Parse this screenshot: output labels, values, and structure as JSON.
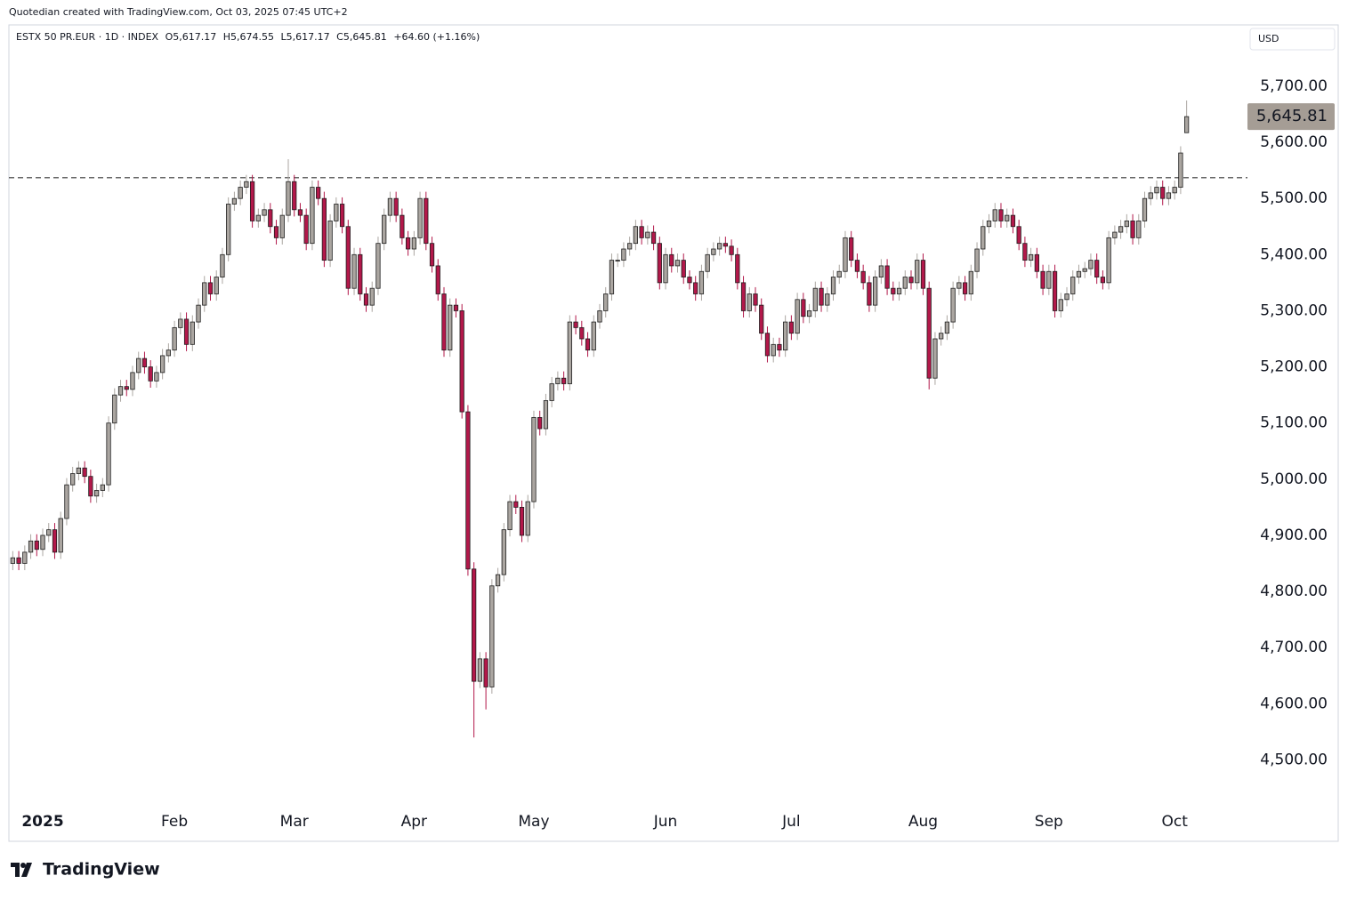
{
  "attribution": "Quotedian created with TradingView.com, Oct 03, 2025 07:45 UTC+2",
  "header": {
    "symbol": "ESTX 50 PR.EUR · 1D · INDEX",
    "open": "O5,617.17",
    "high": "H5,674.55",
    "low": "L5,617.17",
    "close": "C5,645.81",
    "change": "+64.60 (+1.16%)"
  },
  "currency": "USD",
  "logo": "TradingView",
  "chart_data": {
    "type": "candlestick",
    "up_color": "#aba6a1",
    "down_color": "#b2184a",
    "border_color": "#1e1e1e",
    "ylim": [
      4420,
      5806
    ],
    "yticks": [
      {
        "value": 4500,
        "label": "4,500.00"
      },
      {
        "value": 4600,
        "label": "4,600.00"
      },
      {
        "value": 4700,
        "label": "4,700.00"
      },
      {
        "value": 4800,
        "label": "4,800.00"
      },
      {
        "value": 4900,
        "label": "4,900.00"
      },
      {
        "value": 5000,
        "label": "5,000.00"
      },
      {
        "value": 5100,
        "label": "5,100.00"
      },
      {
        "value": 5200,
        "label": "5,200.00"
      },
      {
        "value": 5300,
        "label": "5,300.00"
      },
      {
        "value": 5400,
        "label": "5,400.00"
      },
      {
        "value": 5500,
        "label": "5,500.00"
      },
      {
        "value": 5600,
        "label": "5,600.00"
      },
      {
        "value": 5700,
        "label": "5,700.00"
      }
    ],
    "hline": 5537,
    "last_price_label": "5,645.81",
    "categories": [
      null,
      null,
      null,
      null,
      null,
      "2025",
      null,
      null,
      null,
      null,
      null,
      null,
      null,
      null,
      null,
      null,
      null,
      null,
      null,
      null,
      null,
      null,
      null,
      null,
      null,
      null,
      null,
      "Feb",
      null,
      null,
      null,
      null,
      null,
      null,
      null,
      null,
      null,
      null,
      null,
      null,
      null,
      null,
      null,
      null,
      null,
      null,
      null,
      "Mar",
      null,
      null,
      null,
      null,
      null,
      null,
      null,
      null,
      null,
      null,
      null,
      null,
      null,
      null,
      null,
      null,
      null,
      null,
      null,
      "Apr",
      null,
      null,
      null,
      null,
      null,
      null,
      null,
      null,
      null,
      null,
      null,
      null,
      null,
      null,
      null,
      null,
      null,
      null,
      null,
      "May",
      null,
      null,
      null,
      null,
      null,
      null,
      null,
      null,
      null,
      null,
      null,
      null,
      null,
      null,
      null,
      null,
      null,
      null,
      null,
      null,
      null,
      "Jun",
      null,
      null,
      null,
      null,
      null,
      null,
      null,
      null,
      null,
      null,
      null,
      null,
      null,
      null,
      null,
      null,
      null,
      null,
      null,
      null,
      "Jul",
      null,
      null,
      null,
      null,
      null,
      null,
      null,
      null,
      null,
      null,
      null,
      null,
      null,
      null,
      null,
      null,
      null,
      null,
      null,
      null,
      null,
      "Aug",
      null,
      null,
      null,
      null,
      null,
      null,
      null,
      null,
      null,
      null,
      null,
      null,
      null,
      null,
      null,
      null,
      null,
      null,
      null,
      null,
      "Sep",
      null,
      null,
      null,
      null,
      null,
      null,
      null,
      null,
      null,
      null,
      null,
      null,
      null,
      null,
      null,
      null,
      null,
      null,
      null,
      null,
      "Oct",
      null,
      null
    ],
    "open": [
      4850,
      4860,
      4850,
      4870,
      4890,
      4875,
      4900,
      4910,
      4870,
      4930,
      4990,
      5010,
      5020,
      5005,
      4970,
      4980,
      4990,
      5100,
      5150,
      5165,
      5160,
      5190,
      5215,
      5200,
      5175,
      5190,
      5220,
      5230,
      5270,
      5285,
      5240,
      5280,
      5310,
      5350,
      5330,
      5360,
      5400,
      5490,
      5500,
      5520,
      5530,
      5460,
      5470,
      5480,
      5450,
      5430,
      5470,
      5530,
      5480,
      5470,
      5420,
      5520,
      5500,
      5390,
      5460,
      5490,
      5450,
      5340,
      5400,
      5330,
      5310,
      5340,
      5420,
      5470,
      5500,
      5470,
      5430,
      5410,
      5430,
      5500,
      5420,
      5380,
      5330,
      5230,
      5310,
      5300,
      5120,
      4840,
      4640,
      4680,
      4630,
      4810,
      4830,
      4910,
      4960,
      4950,
      4900,
      4960,
      5110,
      5090,
      5140,
      5170,
      5180,
      5170,
      5280,
      5270,
      5250,
      5230,
      5280,
      5300,
      5330,
      5390,
      5390,
      5410,
      5420,
      5450,
      5430,
      5440,
      5420,
      5350,
      5400,
      5380,
      5390,
      5360,
      5350,
      5330,
      5370,
      5400,
      5410,
      5420,
      5415,
      5400,
      5350,
      5300,
      5330,
      5310,
      5260,
      5220,
      5240,
      5230,
      5280,
      5260,
      5320,
      5290,
      5300,
      5340,
      5310,
      5330,
      5360,
      5370,
      5430,
      5390,
      5370,
      5350,
      5310,
      5360,
      5380,
      5340,
      5330,
      5340,
      5360,
      5350,
      5390,
      5340,
      5180,
      5250,
      5260,
      5280,
      5340,
      5350,
      5330,
      5370,
      5410,
      5450,
      5460,
      5480,
      5460,
      5470,
      5450,
      5420,
      5390,
      5400,
      5370,
      5340,
      5370,
      5300,
      5320,
      5330,
      5360,
      5370,
      5375,
      5390,
      5360,
      5350,
      5430,
      5440,
      5450,
      5460,
      5430,
      5460,
      5500,
      5510,
      5520,
      5500,
      5510,
      5520,
      5617.17
    ],
    "high": [
      4872,
      4872,
      4882,
      4902,
      4902,
      4912,
      4922,
      4922,
      4942,
      5002,
      5022,
      5032,
      5032,
      5017,
      4992,
      5002,
      5112,
      5162,
      5177,
      5177,
      5202,
      5227,
      5227,
      5212,
      5202,
      5232,
      5242,
      5282,
      5297,
      5297,
      5292,
      5322,
      5362,
      5362,
      5372,
      5412,
      5502,
      5512,
      5532,
      5542,
      5542,
      5482,
      5492,
      5492,
      5462,
      5482,
      5570,
      5542,
      5492,
      5482,
      5532,
      5532,
      5512,
      5472,
      5502,
      5502,
      5462,
      5412,
      5412,
      5342,
      5352,
      5432,
      5482,
      5512,
      5512,
      5482,
      5442,
      5442,
      5512,
      5512,
      5432,
      5392,
      5342,
      5322,
      5322,
      5312,
      5132,
      4852,
      4692,
      4692,
      4822,
      4842,
      4922,
      4972,
      4972,
      4962,
      4972,
      5122,
      5122,
      5152,
      5182,
      5192,
      5192,
      5292,
      5292,
      5282,
      5262,
      5292,
      5312,
      5342,
      5402,
      5402,
      5422,
      5432,
      5462,
      5462,
      5452,
      5452,
      5432,
      5412,
      5412,
      5402,
      5402,
      5372,
      5362,
      5382,
      5412,
      5422,
      5432,
      5432,
      5427,
      5412,
      5362,
      5342,
      5342,
      5322,
      5272,
      5252,
      5252,
      5292,
      5292,
      5332,
      5332,
      5312,
      5352,
      5352,
      5342,
      5372,
      5382,
      5442,
      5442,
      5402,
      5382,
      5362,
      5372,
      5392,
      5392,
      5352,
      5352,
      5372,
      5372,
      5402,
      5402,
      5352,
      5262,
      5272,
      5292,
      5352,
      5362,
      5362,
      5382,
      5422,
      5462,
      5472,
      5492,
      5492,
      5482,
      5482,
      5462,
      5432,
      5412,
      5412,
      5382,
      5382,
      5382,
      5332,
      5342,
      5372,
      5382,
      5387,
      5402,
      5402,
      5372,
      5442,
      5452,
      5462,
      5472,
      5472,
      5472,
      5512,
      5522,
      5532,
      5532,
      5522,
      5532,
      5593,
      5674.55
    ],
    "low": [
      4838,
      4838,
      4838,
      4858,
      4863,
      4863,
      4888,
      4858,
      4858,
      4918,
      4978,
      4998,
      4993,
      4958,
      4958,
      4968,
      4978,
      5088,
      5138,
      5148,
      5148,
      5178,
      5188,
      5163,
      5163,
      5178,
      5208,
      5218,
      5258,
      5228,
      5228,
      5268,
      5298,
      5318,
      5318,
      5348,
      5388,
      5478,
      5488,
      5508,
      5448,
      5448,
      5458,
      5438,
      5418,
      5418,
      5458,
      5468,
      5458,
      5408,
      5408,
      5488,
      5378,
      5378,
      5448,
      5438,
      5328,
      5328,
      5318,
      5298,
      5298,
      5328,
      5408,
      5458,
      5458,
      5418,
      5398,
      5398,
      5418,
      5408,
      5368,
      5318,
      5218,
      5218,
      5288,
      5108,
      4828,
      4540,
      4628,
      4590,
      4618,
      4798,
      4818,
      4898,
      4938,
      4888,
      4888,
      4948,
      5078,
      5078,
      5128,
      5158,
      5158,
      5158,
      5258,
      5238,
      5218,
      5218,
      5268,
      5288,
      5318,
      5378,
      5378,
      5398,
      5408,
      5418,
      5418,
      5408,
      5338,
      5338,
      5368,
      5368,
      5348,
      5338,
      5318,
      5318,
      5358,
      5388,
      5398,
      5403,
      5388,
      5338,
      5288,
      5288,
      5298,
      5248,
      5208,
      5208,
      5218,
      5218,
      5248,
      5248,
      5278,
      5278,
      5288,
      5298,
      5298,
      5318,
      5348,
      5358,
      5378,
      5358,
      5338,
      5298,
      5298,
      5348,
      5328,
      5318,
      5318,
      5328,
      5338,
      5338,
      5328,
      5160,
      5168,
      5238,
      5248,
      5268,
      5328,
      5318,
      5318,
      5358,
      5398,
      5438,
      5448,
      5448,
      5448,
      5438,
      5408,
      5378,
      5378,
      5358,
      5328,
      5328,
      5288,
      5288,
      5308,
      5318,
      5348,
      5358,
      5363,
      5348,
      5338,
      5338,
      5418,
      5428,
      5438,
      5418,
      5418,
      5448,
      5488,
      5498,
      5488,
      5488,
      5498,
      5508,
      5617.17
    ],
    "close": [
      4860,
      4850,
      4870,
      4890,
      4875,
      4900,
      4910,
      4870,
      4930,
      4990,
      5010,
      5020,
      5005,
      4970,
      4980,
      4990,
      5100,
      5150,
      5165,
      5160,
      5190,
      5215,
      5200,
      5175,
      5190,
      5220,
      5230,
      5270,
      5285,
      5240,
      5280,
      5310,
      5350,
      5330,
      5360,
      5400,
      5490,
      5500,
      5520,
      5530,
      5460,
      5470,
      5480,
      5450,
      5430,
      5470,
      5530,
      5480,
      5470,
      5420,
      5520,
      5500,
      5390,
      5460,
      5490,
      5450,
      5340,
      5400,
      5330,
      5310,
      5340,
      5420,
      5470,
      5500,
      5470,
      5430,
      5410,
      5430,
      5500,
      5420,
      5380,
      5330,
      5230,
      5310,
      5300,
      5120,
      4840,
      4640,
      4680,
      4630,
      4810,
      4830,
      4910,
      4960,
      4950,
      4900,
      4960,
      5110,
      5090,
      5140,
      5170,
      5180,
      5170,
      5280,
      5270,
      5250,
      5230,
      5280,
      5300,
      5330,
      5390,
      5390,
      5410,
      5420,
      5450,
      5430,
      5440,
      5420,
      5350,
      5400,
      5380,
      5390,
      5360,
      5350,
      5330,
      5370,
      5400,
      5410,
      5420,
      5415,
      5400,
      5350,
      5300,
      5330,
      5310,
      5260,
      5220,
      5240,
      5230,
      5280,
      5260,
      5320,
      5290,
      5300,
      5340,
      5310,
      5330,
      5360,
      5370,
      5430,
      5390,
      5370,
      5350,
      5310,
      5360,
      5380,
      5340,
      5330,
      5340,
      5360,
      5350,
      5390,
      5340,
      5180,
      5250,
      5260,
      5280,
      5340,
      5350,
      5330,
      5370,
      5410,
      5450,
      5460,
      5480,
      5460,
      5470,
      5450,
      5420,
      5390,
      5400,
      5370,
      5340,
      5370,
      5300,
      5320,
      5330,
      5360,
      5370,
      5375,
      5390,
      5360,
      5350,
      5430,
      5440,
      5450,
      5460,
      5430,
      5460,
      5500,
      5510,
      5520,
      5500,
      5510,
      5520,
      5581,
      5645.81
    ]
  }
}
